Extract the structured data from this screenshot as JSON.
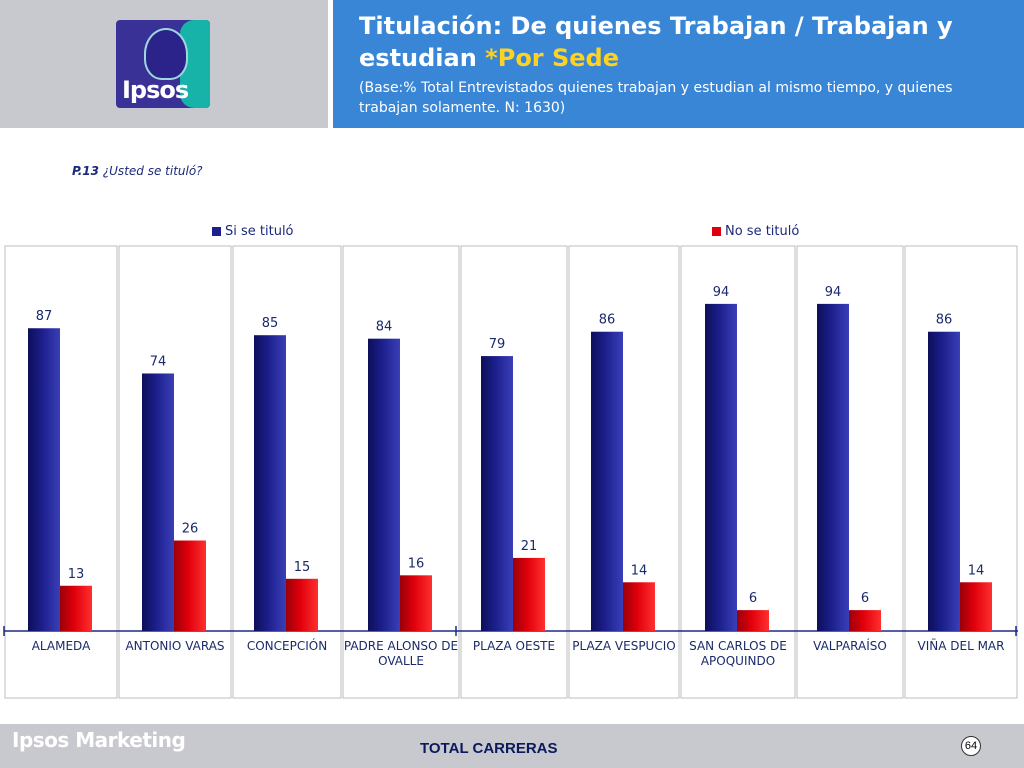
{
  "header": {
    "logo_text": "Ipsos",
    "title_main": "Titulación: De quienes Trabajan / Trabajan y estudian ",
    "title_accent": "*Por Sede",
    "subtitle": "(Base:% Total Entrevistados quienes trabajan y estudian al mismo tiempo, y quienes trabajan solamente. N: 1630)"
  },
  "question": {
    "code": "P.13",
    "text": " ¿Usted se tituló?"
  },
  "colors": {
    "series_si": "#1c1f8c",
    "series_no": "#e0000b",
    "header_blue": "#3a86d6",
    "accent_yellow": "#ffd21f",
    "footer_gray": "#c8c8cf"
  },
  "chart_data": {
    "type": "bar",
    "categories": [
      "ALAMEDA",
      "ANTONIO VARAS",
      "CONCEPCIÓN",
      "PADRE ALONSO DE OVALLE",
      "PLAZA OESTE",
      "PLAZA VESPUCIO",
      "SAN CARLOS DE APOQUINDO",
      "VALPARAÍSO",
      "VIÑA DEL MAR"
    ],
    "series": [
      {
        "name": "Si se tituló",
        "values": [
          87,
          74,
          85,
          84,
          79,
          86,
          94,
          94,
          86
        ]
      },
      {
        "name": "No se tituló",
        "values": [
          13,
          26,
          15,
          16,
          21,
          14,
          6,
          6,
          14
        ]
      }
    ],
    "ylim": [
      0,
      100
    ],
    "legend": "top",
    "grid": false
  },
  "footer": {
    "brand": "Ipsos Marketing",
    "center": "TOTAL CARRERAS",
    "page": "64"
  }
}
